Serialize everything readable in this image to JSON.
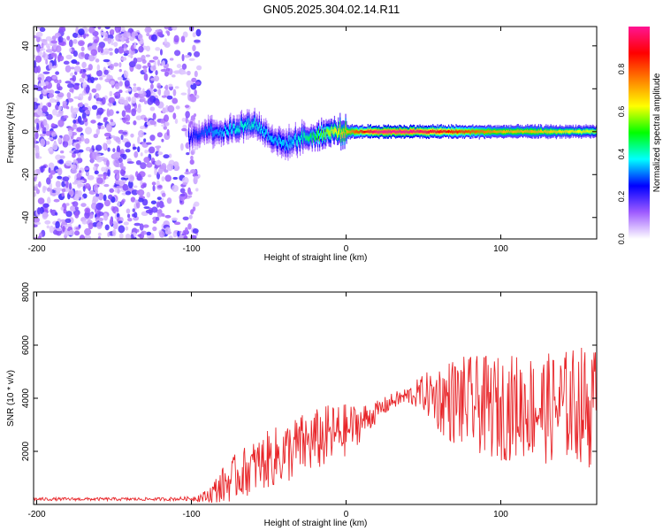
{
  "figure_title": "GN05.2025.304.02.14.R11",
  "colors": {
    "snr_line": "#e8262a",
    "axis": "#000000",
    "colorbar_stops": [
      "#ffffff",
      "#9f5cff",
      "#0000ff",
      "#00ffff",
      "#00ff00",
      "#ffff00",
      "#ff8000",
      "#ff0000",
      "#ff1493"
    ]
  },
  "chart_data": [
    {
      "type": "heatmap",
      "title": "GN05.2025.304.02.14.R11",
      "xlabel": "Height of straight line (km)",
      "ylabel": "Frequency (Hz)",
      "xlim": [
        -202,
        162
      ],
      "ylim": [
        -50,
        49
      ],
      "xticks": [
        -200,
        -100,
        0,
        100
      ],
      "yticks": [
        -40,
        -20,
        0,
        20,
        40
      ],
      "colorbar": {
        "label": "Normalized spectral amplitude",
        "range": [
          0,
          1
        ],
        "ticks": [
          "0.0",
          "0.2",
          "0.4",
          "0.6",
          "0.8"
        ]
      },
      "noise_region": {
        "x_range": [
          -202,
          -95
        ],
        "freq_range": [
          -50,
          49
        ],
        "amplitude": "low (purple, 0.05-0.2)"
      },
      "signal_ridge": {
        "x": [
          -100,
          -90,
          -80,
          -70,
          -60,
          -50,
          -40,
          -30,
          -20,
          -10,
          0,
          10,
          20,
          40,
          60,
          80,
          100,
          120,
          140,
          160
        ],
        "frequency_hz": [
          -3,
          1,
          0,
          2,
          4,
          -2,
          -6,
          -3,
          -2,
          0,
          0,
          0,
          0,
          0,
          0,
          0,
          0,
          0,
          0,
          0
        ],
        "amplitude": [
          0.25,
          0.3,
          0.35,
          0.4,
          0.4,
          0.35,
          0.35,
          0.4,
          0.5,
          0.6,
          0.7,
          0.85,
          1.0,
          1.0,
          0.9,
          0.8,
          0.7,
          0.7,
          0.65,
          0.6
        ]
      }
    },
    {
      "type": "line",
      "xlabel": "Height of straight line (km)",
      "ylabel": "SNR (10 * v/v)",
      "xlim": [
        -202,
        162
      ],
      "ylim": [
        0,
        8000
      ],
      "xticks": [
        -200,
        -100,
        0,
        100
      ],
      "yticks": [
        2000,
        4000,
        6000,
        8000
      ],
      "series": [
        {
          "name": "SNR",
          "x": [
            -200,
            -180,
            -160,
            -140,
            -120,
            -100,
            -90,
            -80,
            -70,
            -60,
            -50,
            -40,
            -30,
            -20,
            -10,
            0,
            10,
            20,
            30,
            40,
            50,
            60,
            70,
            80,
            90,
            100,
            110,
            120,
            130,
            140,
            150,
            160
          ],
          "mean": [
            200,
            200,
            200,
            200,
            200,
            220,
            300,
            700,
            1100,
            1400,
            1700,
            1900,
            2200,
            2400,
            2600,
            2800,
            3100,
            3500,
            3900,
            4100,
            4200,
            4000,
            3900,
            3800,
            3700,
            3600,
            3700,
            3700,
            3600,
            3700,
            3800,
            3600
          ],
          "amplitude": [
            60,
            60,
            60,
            60,
            60,
            80,
            250,
            700,
            900,
            1000,
            1100,
            1200,
            1200,
            1200,
            1200,
            1000,
            700,
            400,
            300,
            350,
            700,
            1300,
            1700,
            1800,
            1900,
            2000,
            2000,
            2000,
            2100,
            2100,
            2200,
            2400
          ]
        }
      ]
    }
  ]
}
